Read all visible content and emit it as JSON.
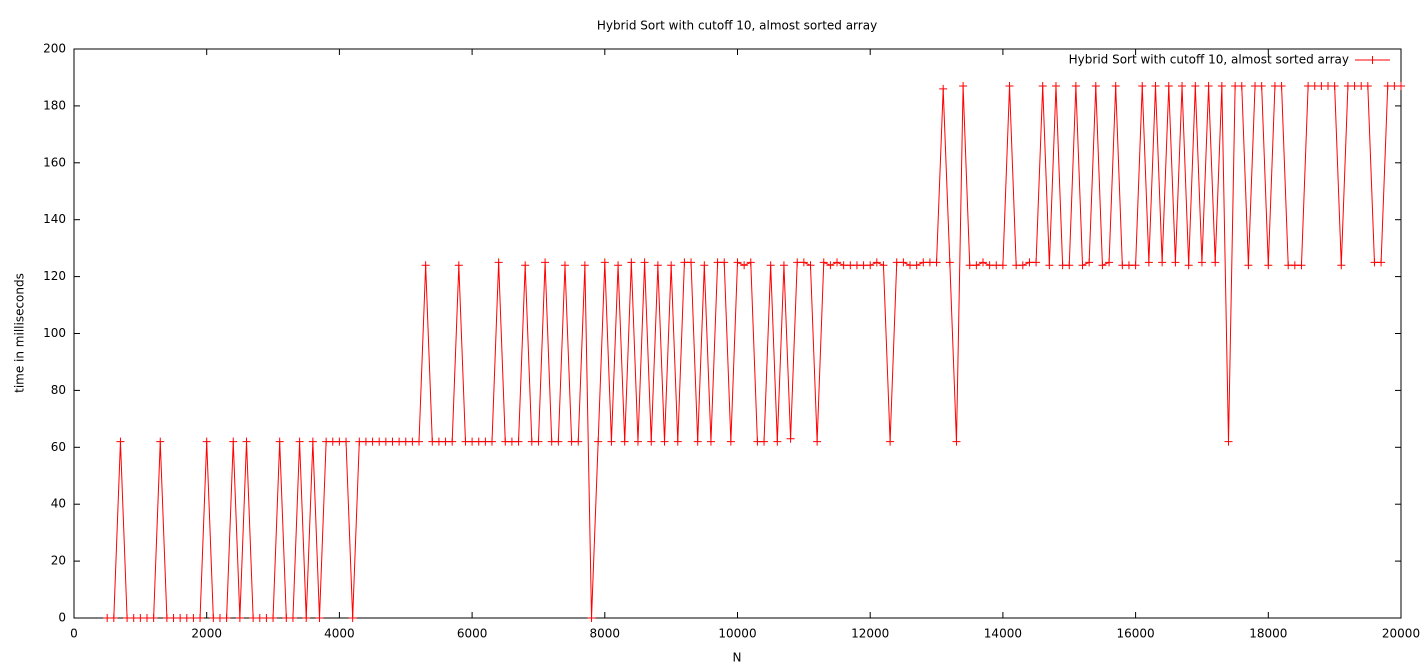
{
  "chart_data": {
    "type": "line",
    "title": "Hybrid Sort with cutoff 10, almost sorted array",
    "x_label": "N",
    "y_label": "time in milliseconds",
    "x": [
      500,
      600,
      700,
      800,
      900,
      1000,
      1100,
      1200,
      1300,
      1400,
      1500,
      1600,
      1700,
      1800,
      1900,
      2000,
      2100,
      2200,
      2300,
      2400,
      2500,
      2600,
      2700,
      2800,
      2900,
      3000,
      3100,
      3200,
      3300,
      3400,
      3500,
      3600,
      3700,
      3800,
      3900,
      4000,
      4100,
      4200,
      4300,
      4400,
      4500,
      4600,
      4700,
      4800,
      4900,
      5000,
      5100,
      5200,
      5300,
      5400,
      5500,
      5600,
      5700,
      5800,
      5900,
      6000,
      6100,
      6200,
      6300,
      6400,
      6500,
      6600,
      6700,
      6800,
      6900,
      7000,
      7100,
      7200,
      7300,
      7400,
      7500,
      7600,
      7700,
      7800,
      7900,
      8000,
      8100,
      8200,
      8300,
      8400,
      8500,
      8600,
      8700,
      8800,
      8900,
      9000,
      9100,
      9200,
      9300,
      9400,
      9500,
      9600,
      9700,
      9800,
      9900,
      10000,
      10100,
      10200,
      10300,
      10400,
      10500,
      10600,
      10700,
      10800,
      10900,
      11000,
      11100,
      11200,
      11300,
      11400,
      11500,
      11600,
      11700,
      11800,
      11900,
      12000,
      12100,
      12200,
      12300,
      12400,
      12500,
      12600,
      12700,
      12800,
      12900,
      13000,
      13100,
      13200,
      13300,
      13400,
      13500,
      13600,
      13700,
      13800,
      13900,
      14000,
      14100,
      14200,
      14300,
      14400,
      14500,
      14600,
      14700,
      14800,
      14900,
      15000,
      15100,
      15200,
      15300,
      15400,
      15500,
      15600,
      15700,
      15800,
      15900,
      16000,
      16100,
      16200,
      16300,
      16400,
      16500,
      16600,
      16700,
      16800,
      16900,
      17000,
      17100,
      17200,
      17300,
      17400,
      17500,
      17600,
      17700,
      17800,
      17900,
      18000,
      18100,
      18200,
      18300,
      18400,
      18500,
      18600,
      18700,
      18800,
      18900,
      19000,
      19100,
      19200,
      19300,
      19400,
      19500,
      19600,
      19700,
      19800,
      19900,
      20000
    ],
    "series": [
      {
        "name": "Hybrid Sort with cutoff 10, almost sorted array",
        "color": "#ff0000",
        "values": [
          0,
          0,
          62,
          0,
          0,
          0,
          0,
          0,
          62,
          0,
          0,
          0,
          0,
          0,
          0,
          62,
          0,
          0,
          0,
          62,
          0,
          62,
          0,
          0,
          0,
          0,
          62,
          0,
          0,
          62,
          0,
          62,
          0,
          62,
          62,
          62,
          62,
          0,
          62,
          62,
          62,
          62,
          62,
          62,
          62,
          62,
          62,
          62,
          124,
          62,
          62,
          62,
          62,
          124,
          62,
          62,
          62,
          62,
          62,
          125,
          62,
          62,
          62,
          124,
          62,
          62,
          125,
          62,
          62,
          124,
          62,
          62,
          124,
          0,
          62,
          125,
          62,
          124,
          62,
          125,
          62,
          125,
          62,
          124,
          62,
          124,
          62,
          125,
          125,
          62,
          124,
          62,
          125,
          125,
          62,
          125,
          124,
          125,
          62,
          62,
          124,
          62,
          124,
          63,
          125,
          125,
          124,
          62,
          125,
          124,
          125,
          124,
          124,
          124,
          124,
          124,
          125,
          124,
          62,
          125,
          125,
          124,
          124,
          125,
          125,
          125,
          186,
          125,
          62,
          187,
          124,
          124,
          125,
          124,
          124,
          124,
          187,
          124,
          124,
          125,
          125,
          187,
          124,
          187,
          124,
          124,
          187,
          124,
          125,
          187,
          124,
          125,
          187,
          124,
          124,
          124,
          187,
          125,
          187,
          125,
          187,
          125,
          187,
          124,
          187,
          125,
          187,
          125,
          187,
          62,
          187,
          187,
          124,
          187,
          187,
          124,
          187,
          187,
          124,
          124,
          124,
          187,
          187,
          187,
          187,
          187,
          124,
          187,
          187,
          187,
          187,
          125,
          125,
          187,
          187,
          187
        ]
      }
    ],
    "xlim": [
      0,
      20000
    ],
    "ylim": [
      0,
      200
    ],
    "xticks": [
      0,
      2000,
      4000,
      6000,
      8000,
      10000,
      12000,
      14000,
      16000,
      18000,
      20000
    ],
    "yticks": [
      0,
      20,
      40,
      60,
      80,
      100,
      120,
      140,
      160,
      180,
      200
    ],
    "legend": "top-right",
    "grid": false
  }
}
